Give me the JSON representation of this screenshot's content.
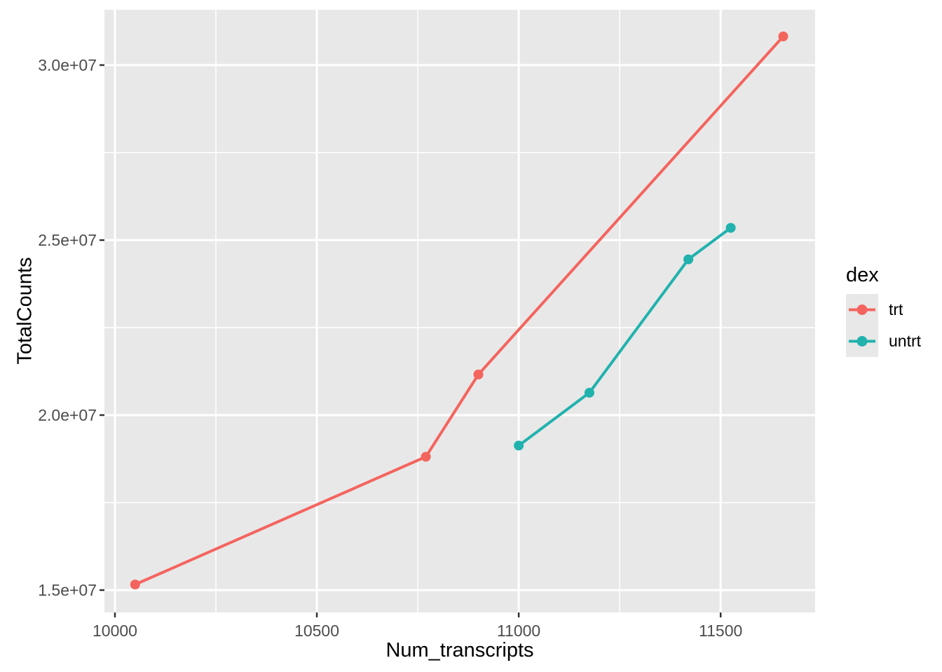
{
  "chart_data": {
    "type": "line",
    "title": "",
    "xlabel": "Num_transcripts",
    "ylabel": "TotalCounts",
    "legend_title": "dex",
    "legend_position": "right",
    "grid": true,
    "xlim": [
      9974,
      11734
    ],
    "ylim": [
      14360000,
      31580000
    ],
    "x_ticks": {
      "values": [
        10000,
        10500,
        11000,
        11500
      ],
      "labels": [
        "10000",
        "10500",
        "11000",
        "11500"
      ]
    },
    "y_ticks": {
      "values": [
        15000000,
        20000000,
        25000000,
        30000000
      ],
      "labels": [
        "1.5e+07",
        "2.0e+07",
        "2.5e+07",
        "3.0e+07"
      ]
    },
    "x_minor": [
      10250,
      10750,
      11250
    ],
    "y_minor": [
      17500000,
      22500000,
      27500000
    ],
    "series": [
      {
        "name": "trt",
        "color": "#F4645E",
        "x": [
          10050,
          10770,
          10900,
          11655
        ],
        "y": [
          15160000,
          18810000,
          21160000,
          30820000
        ]
      },
      {
        "name": "untrt",
        "color": "#21B2AE",
        "x": [
          11000,
          11175,
          11420,
          11525
        ],
        "y": [
          19130000,
          20640000,
          24450000,
          25350000
        ]
      }
    ]
  },
  "legend": {
    "title": "dex",
    "items": [
      {
        "label": "trt",
        "color": "#F4645E"
      },
      {
        "label": "untrt",
        "color": "#21B2AE"
      }
    ]
  },
  "theme": {
    "panel_bg": "#E8E8E8",
    "grid_color": "#FFFFFF",
    "tick_color": "#333333",
    "tick_label_color": "#4D4D4D",
    "axis_title_color": "#000000",
    "legend_key_bg": "#E8E8E8"
  }
}
